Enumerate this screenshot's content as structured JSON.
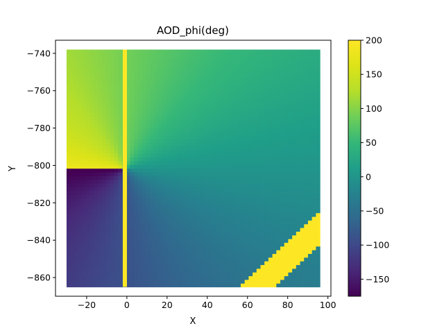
{
  "chart_data": {
    "type": "heatmap",
    "title": "AOD_phi(deg)",
    "xlabel": "X",
    "ylabel": "Y",
    "xlim": [
      -35.5,
      101.5
    ],
    "ylim": [
      -870,
      -733
    ],
    "xticks": [
      -20,
      0,
      20,
      40,
      60,
      80,
      100
    ],
    "xtick_labels": [
      "−20",
      "0",
      "20",
      "40",
      "60",
      "80",
      "100"
    ],
    "yticks": [
      -740,
      -760,
      -780,
      -800,
      -820,
      -840,
      -860
    ],
    "ytick_labels": [
      "−740",
      "−760",
      "−780",
      "−800",
      "−820",
      "−840",
      "−860"
    ],
    "data_extent": {
      "x": [
        -30,
        96
      ],
      "y": [
        -865,
        -738
      ]
    },
    "center": {
      "x": -1,
      "y": -801.5
    },
    "field": "phi = atan2(Y - center.y, X - center.x) in degrees; yellow (200) at x ≈ -1 seam and in diagonal band",
    "band": {
      "x_intercept_at_bottom": [
        56,
        74
      ],
      "slope": 1.0,
      "value": 200
    },
    "colorbar": {
      "colormap": "viridis",
      "vmin": -175,
      "vmax": 200,
      "ticks": [
        200,
        150,
        100,
        50,
        0,
        -50,
        -100,
        -150
      ],
      "tick_labels": [
        "200",
        "150",
        "100",
        "50",
        "0",
        "−50",
        "−100",
        "−150"
      ]
    }
  }
}
